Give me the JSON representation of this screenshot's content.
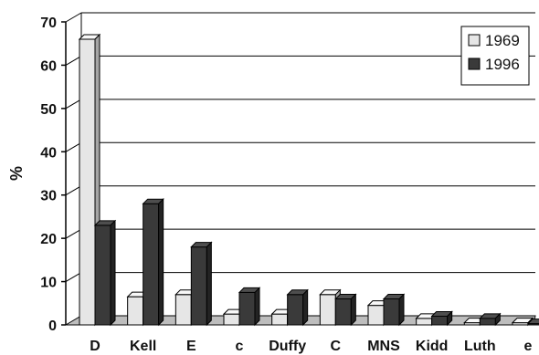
{
  "chart_data": {
    "type": "bar",
    "title": "",
    "xlabel": "",
    "ylabel": "%",
    "ylim": [
      0,
      70
    ],
    "yticks": [
      0,
      10,
      20,
      30,
      40,
      50,
      60,
      70
    ],
    "grid": true,
    "legend_position": "top-right",
    "style": "3d",
    "categories": [
      "D",
      "Kell",
      "E",
      "c",
      "Duffy",
      "C",
      "MNS",
      "Kidd",
      "Luth",
      "e"
    ],
    "series": [
      {
        "name": "1969",
        "color": "#e6e6e6",
        "values": [
          66,
          6.5,
          7,
          2.5,
          2.5,
          7,
          4.5,
          1.5,
          0.5,
          0.5
        ]
      },
      {
        "name": "1996",
        "color": "#3a3a3a",
        "values": [
          23,
          28,
          18,
          7.5,
          7,
          6,
          6,
          2,
          1.5,
          0.3
        ]
      }
    ]
  }
}
